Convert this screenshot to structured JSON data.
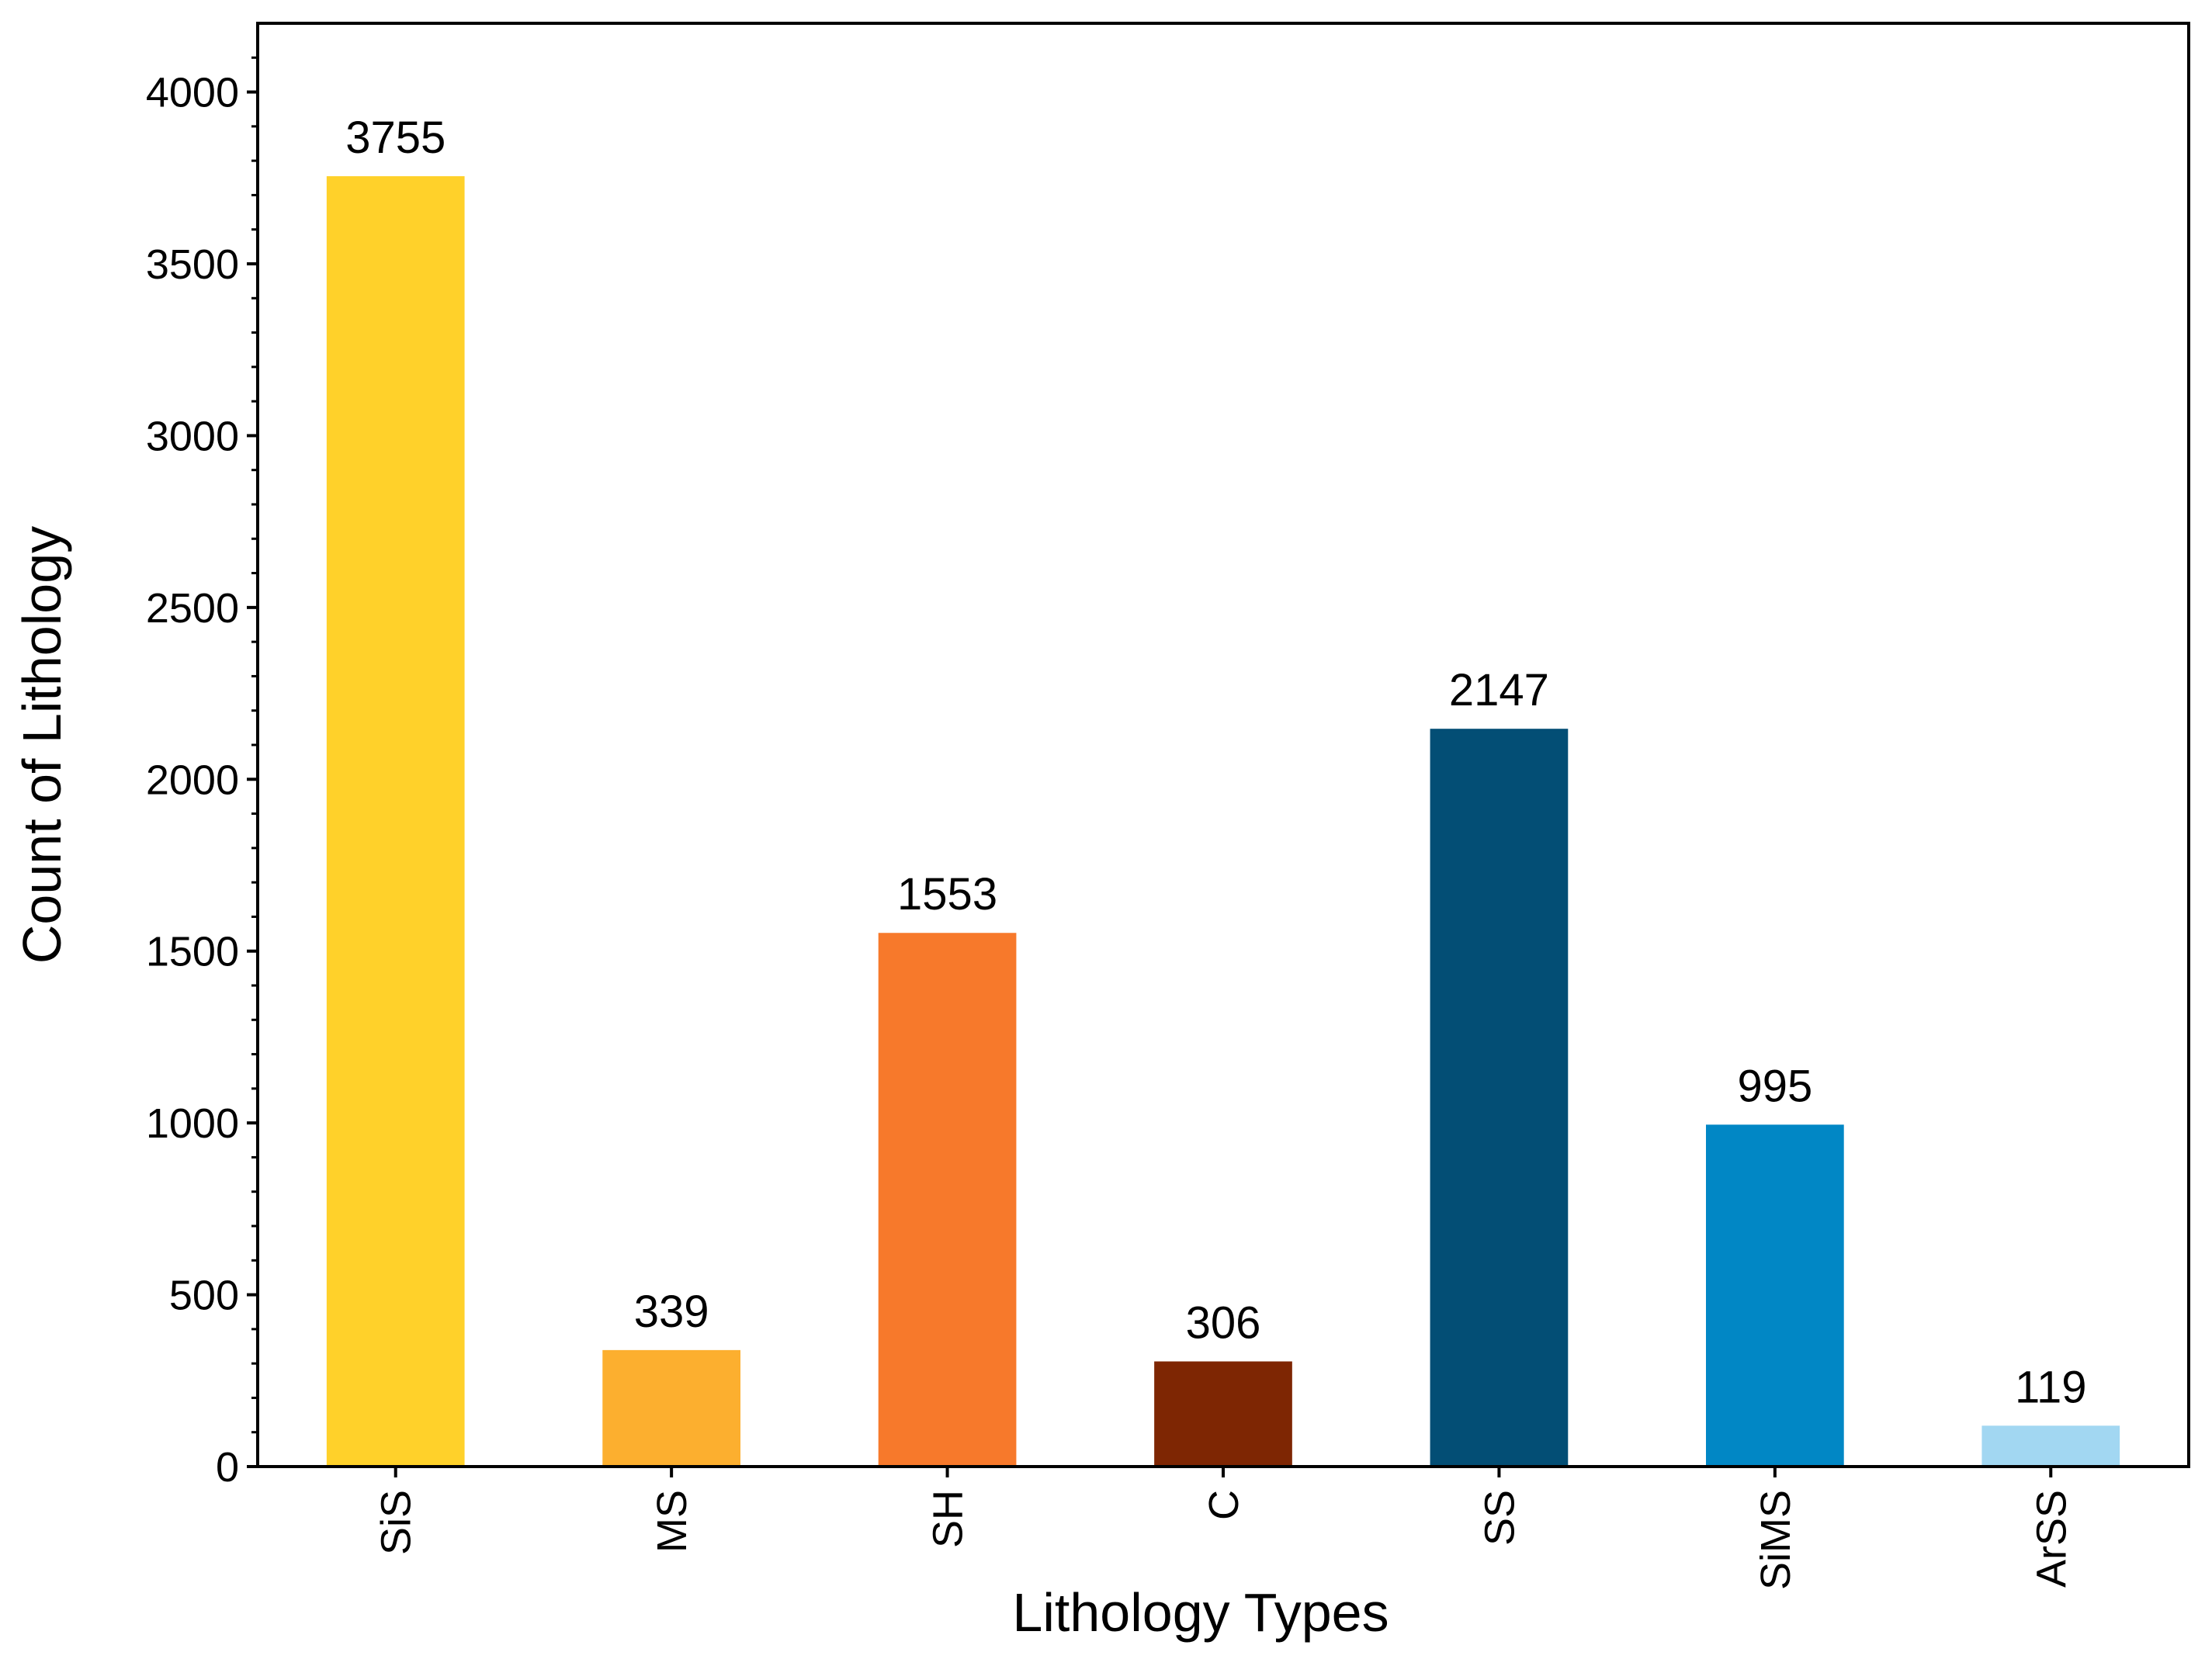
{
  "chart_data": {
    "type": "bar",
    "categories": [
      "SiS",
      "MS",
      "SH",
      "C",
      "SS",
      "SiMS",
      "ArSS"
    ],
    "values": [
      3755,
      339,
      1553,
      306,
      2147,
      995,
      119
    ],
    "data_labels": [
      "3755",
      "339",
      "1553",
      "306",
      "2147",
      "995",
      "119"
    ],
    "colors": [
      "#FFD12A",
      "#FCAF2F",
      "#F7792B",
      "#7E2603",
      "#034E75",
      "#0187C5",
      "#A2D7F2"
    ],
    "xlabel": "Lithology Types",
    "ylabel": "Count of Lithology",
    "ylim": [
      0,
      4200
    ],
    "yticks": [
      0,
      500,
      1000,
      1500,
      2000,
      2500,
      3000,
      3500,
      4000
    ],
    "ytick_labels": [
      "0",
      "500",
      "1000",
      "1500",
      "2000",
      "2500",
      "3000",
      "3500",
      "4000"
    ],
    "y_minor_tick_step": 100,
    "grid": false,
    "legend": "none"
  }
}
